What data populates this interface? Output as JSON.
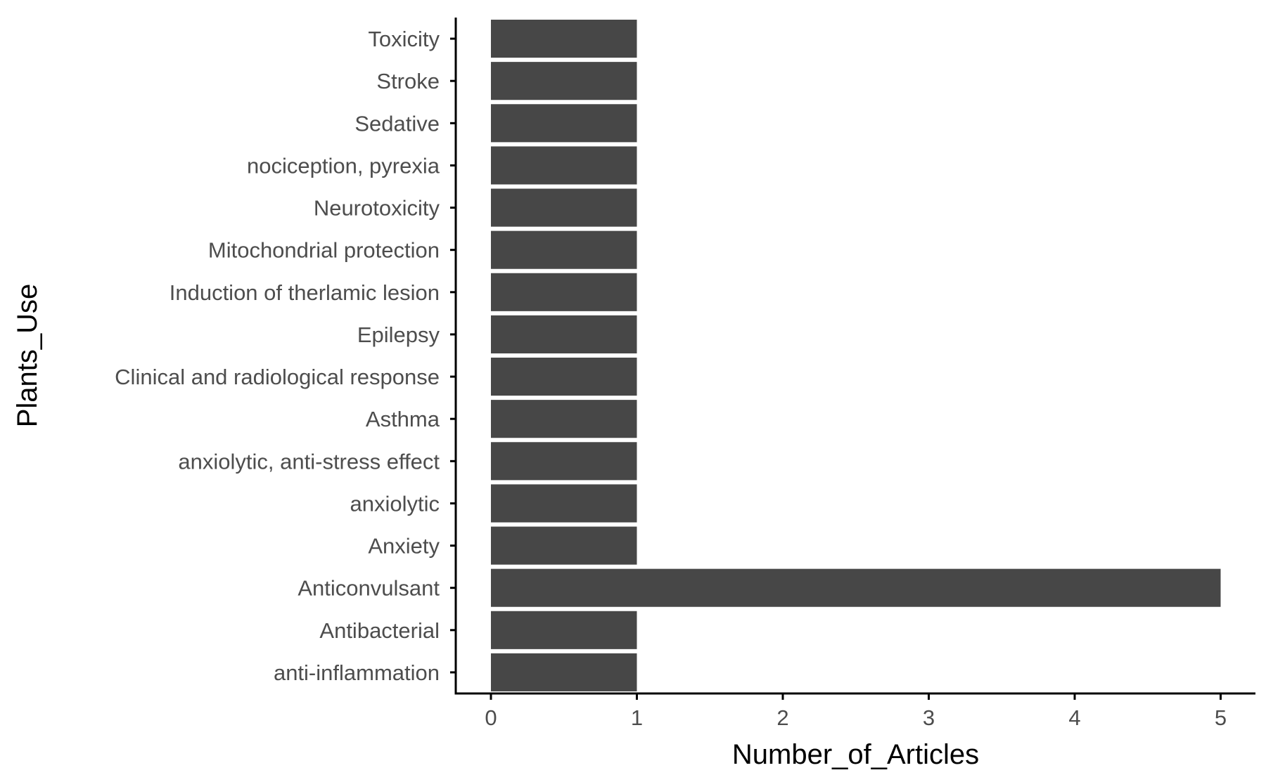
{
  "chart_data": {
    "type": "bar",
    "orientation": "horizontal",
    "xlabel": "Number_of_Articles",
    "ylabel": "Plants_Use",
    "categories": [
      "anti-inflammation",
      "Antibacterial",
      "Anticonvulsant",
      "Anxiety",
      "anxiolytic",
      "anxiolytic, anti-stress effect",
      "Asthma",
      "Clinical and radiological response",
      "Epilepsy",
      "Induction of therlamic lesion",
      "Mitochondrial protection",
      "Neurotoxicity",
      "nociception, pyrexia",
      "Sedative",
      "Stroke",
      "Toxicity"
    ],
    "values": [
      1,
      1,
      5,
      1,
      1,
      1,
      1,
      1,
      1,
      1,
      1,
      1,
      1,
      1,
      1,
      1
    ],
    "xlim": [
      0,
      5
    ],
    "x_ticks": [
      "0",
      "1",
      "2",
      "3",
      "4",
      "5"
    ],
    "grid": false,
    "bar_color": "#474747",
    "axis_color": "#000000",
    "tick_label_color": "#4d4d4d"
  }
}
